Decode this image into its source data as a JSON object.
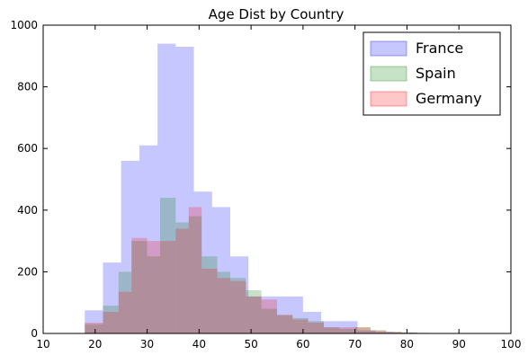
{
  "chart_data": {
    "type": "histogram",
    "title": "Age Dist by Country",
    "xlabel": "",
    "ylabel": "",
    "xlim": [
      10,
      100
    ],
    "ylim": [
      0,
      1000
    ],
    "x_ticks": [
      "10",
      "20",
      "30",
      "40",
      "50",
      "60",
      "70",
      "80",
      "90",
      "100"
    ],
    "y_ticks": [
      "0",
      "200",
      "400",
      "600",
      "800",
      "1000"
    ],
    "grid": false,
    "legend_position": "top-right",
    "series": [
      {
        "name": "France",
        "color": "#0000ff",
        "fill_opacity": 0.22,
        "bins": [
          [
            18,
            21.5,
            75
          ],
          [
            21.5,
            25,
            230
          ],
          [
            25,
            28.5,
            560
          ],
          [
            28.5,
            32,
            610
          ],
          [
            32,
            35.5,
            940
          ],
          [
            35.5,
            39,
            930
          ],
          [
            39,
            42.5,
            460
          ],
          [
            42.5,
            46,
            410
          ],
          [
            46,
            49.5,
            250
          ],
          [
            49.5,
            53,
            120
          ],
          [
            53,
            56.5,
            120
          ],
          [
            56.5,
            60,
            120
          ],
          [
            60,
            63.5,
            70
          ],
          [
            63.5,
            67,
            40
          ],
          [
            67,
            70.5,
            40
          ],
          [
            70.5,
            74,
            10
          ],
          [
            74,
            77.5,
            5
          ],
          [
            77.5,
            81,
            3
          ],
          [
            81,
            84.5,
            2
          ],
          [
            84.5,
            88,
            1
          ],
          [
            88,
            91.5,
            1
          ],
          [
            91.5,
            95,
            1
          ]
        ]
      },
      {
        "name": "Spain",
        "color": "#008000",
        "fill_opacity": 0.22,
        "bins": [
          [
            18,
            21.5,
            30
          ],
          [
            21.5,
            24.5,
            90
          ],
          [
            24.5,
            27,
            200
          ],
          [
            27,
            30,
            300
          ],
          [
            30,
            32.5,
            250
          ],
          [
            32.5,
            35.5,
            440
          ],
          [
            35.5,
            38,
            360
          ],
          [
            38,
            40.5,
            380
          ],
          [
            40.5,
            43.5,
            250
          ],
          [
            43.5,
            46,
            200
          ],
          [
            46,
            49,
            180
          ],
          [
            49,
            52,
            140
          ],
          [
            52,
            55,
            80
          ],
          [
            55,
            58,
            60
          ],
          [
            58,
            61,
            50
          ],
          [
            61,
            64,
            40
          ],
          [
            64,
            67,
            20
          ],
          [
            67,
            70,
            15
          ],
          [
            70,
            73,
            20
          ],
          [
            73,
            76,
            10
          ],
          [
            76,
            79,
            5
          ],
          [
            79,
            82,
            3
          ]
        ]
      },
      {
        "name": "Germany",
        "color": "#ff0000",
        "fill_opacity": 0.22,
        "bins": [
          [
            18,
            21.5,
            35
          ],
          [
            21.5,
            24.5,
            70
          ],
          [
            24.5,
            27,
            135
          ],
          [
            27,
            30,
            310
          ],
          [
            30,
            32.5,
            300
          ],
          [
            32.5,
            35.5,
            300
          ],
          [
            35.5,
            38,
            340
          ],
          [
            38,
            40.5,
            410
          ],
          [
            40.5,
            43.5,
            210
          ],
          [
            43.5,
            46,
            180
          ],
          [
            46,
            49,
            170
          ],
          [
            49,
            52,
            120
          ],
          [
            52,
            55,
            110
          ],
          [
            55,
            58,
            60
          ],
          [
            58,
            61,
            45
          ],
          [
            61,
            64,
            35
          ],
          [
            64,
            67,
            20
          ],
          [
            67,
            70,
            20
          ],
          [
            70,
            73,
            20
          ],
          [
            73,
            76,
            10
          ],
          [
            76,
            79,
            5
          ],
          [
            79,
            82,
            3
          ]
        ]
      }
    ]
  }
}
